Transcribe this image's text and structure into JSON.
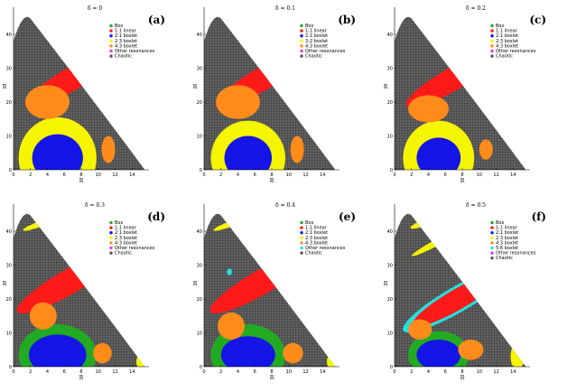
{
  "chart_data": [
    {
      "type": "scatter",
      "panel": "(a)",
      "title": "δ = 0",
      "xlabel": "R",
      "ylabel": "R",
      "xlim": [
        0,
        16
      ],
      "ylim": [
        0,
        48
      ],
      "xticks": [
        "0",
        "2",
        "4",
        "6",
        "8",
        "10",
        "12",
        "14"
      ],
      "yticks": [
        "0",
        "10",
        "20",
        "30",
        "40"
      ],
      "legend": [
        {
          "label": "Box",
          "color": "#22aa22"
        },
        {
          "label": "1:1 linear",
          "color": "#ff1a1a"
        },
        {
          "label": "2:1 boxlet",
          "color": "#1414e6"
        },
        {
          "label": "2:3 boxlet",
          "color": "#f5f500"
        },
        {
          "label": "4:3 boxlet",
          "color": "#ff8c1a"
        },
        {
          "label": "Other resonances",
          "color": "#e040e0"
        },
        {
          "label": "Chaotic",
          "color": "#555555"
        }
      ],
      "regions": [
        {
          "orbit": "Box",
          "color": "#22aa22",
          "cx": 5.2,
          "cy": 3.5,
          "rx": 3.8,
          "ry": 9,
          "kind": "ellipse"
        },
        {
          "orbit": "2:3 boxlet",
          "color": "#f5f500",
          "cx": 5.2,
          "cy": 3.5,
          "rx": 4.6,
          "ry": 12,
          "kind": "ellipse"
        },
        {
          "orbit": "2:1 boxlet",
          "color": "#1414e6",
          "cx": 5.2,
          "cy": 3.5,
          "rx": 3.0,
          "ry": 7,
          "kind": "ellipse"
        },
        {
          "orbit": "1:1 linear",
          "color": "#ff1a1a",
          "cx": 7.0,
          "cy": 27,
          "rx": 6.5,
          "ry": 3.4,
          "rot": 30,
          "kind": "ellipse"
        },
        {
          "orbit": "4:3 boxlet",
          "color": "#ff8c1a",
          "cx": 4.0,
          "cy": 20,
          "rx": 2.6,
          "ry": 5,
          "kind": "ellipse"
        },
        {
          "orbit": "4:3 boxlet",
          "color": "#ff8c1a",
          "cx": 11.2,
          "cy": 6,
          "rx": 0.8,
          "ry": 4,
          "kind": "ellipse"
        }
      ]
    },
    {
      "type": "scatter",
      "panel": "(b)",
      "title": "δ = 0.1",
      "xlabel": "R",
      "ylabel": "R",
      "xlim": [
        0,
        16
      ],
      "ylim": [
        0,
        48
      ],
      "xticks": [
        "0",
        "2",
        "4",
        "6",
        "8",
        "10",
        "12",
        "14"
      ],
      "yticks": [
        "0",
        "10",
        "20",
        "30",
        "40"
      ],
      "legend": [
        {
          "label": "Box",
          "color": "#22aa22"
        },
        {
          "label": "1:1 linear",
          "color": "#ff1a1a"
        },
        {
          "label": "2:1 boxlet",
          "color": "#1414e6"
        },
        {
          "label": "3:2 boxlet",
          "color": "#f5f500"
        },
        {
          "label": "4:3 boxlet",
          "color": "#ff8c1a"
        },
        {
          "label": "Other resonances",
          "color": "#e040e0"
        },
        {
          "label": "Chaotic",
          "color": "#555555"
        }
      ],
      "regions": [
        {
          "orbit": "Box",
          "color": "#22aa22",
          "cx": 5.2,
          "cy": 3.5,
          "rx": 3.6,
          "ry": 9,
          "kind": "ellipse"
        },
        {
          "orbit": "3:2 boxlet",
          "color": "#f5f500",
          "cx": 5.2,
          "cy": 3.5,
          "rx": 4.4,
          "ry": 11,
          "kind": "ellipse"
        },
        {
          "orbit": "2:1 boxlet",
          "color": "#1414e6",
          "cx": 5.2,
          "cy": 3.5,
          "rx": 2.8,
          "ry": 6.5,
          "kind": "ellipse"
        },
        {
          "orbit": "1:1 linear",
          "color": "#ff1a1a",
          "cx": 7.0,
          "cy": 27,
          "rx": 6.5,
          "ry": 3.4,
          "rot": 30,
          "kind": "ellipse"
        },
        {
          "orbit": "4:3 boxlet",
          "color": "#ff8c1a",
          "cx": 4.0,
          "cy": 20,
          "rx": 2.6,
          "ry": 5,
          "kind": "ellipse"
        },
        {
          "orbit": "4:3 boxlet",
          "color": "#ff8c1a",
          "cx": 11.0,
          "cy": 6,
          "rx": 0.8,
          "ry": 4,
          "kind": "ellipse"
        }
      ]
    },
    {
      "type": "scatter",
      "panel": "(c)",
      "title": "δ = 0.2",
      "xlabel": "R",
      "ylabel": "R",
      "xlim": [
        0,
        16
      ],
      "ylim": [
        0,
        48
      ],
      "xticks": [
        "0",
        "2",
        "4",
        "6",
        "8",
        "10",
        "12",
        "14"
      ],
      "yticks": [
        "0",
        "10",
        "20",
        "30",
        "40"
      ],
      "legend": [
        {
          "label": "Box",
          "color": "#22aa22"
        },
        {
          "label": "1:1 linear",
          "color": "#ff1a1a"
        },
        {
          "label": "2:1 boxlet",
          "color": "#1414e6"
        },
        {
          "label": "2:3 boxlet",
          "color": "#f5f500"
        },
        {
          "label": "4:3 boxlet",
          "color": "#ff8c1a"
        },
        {
          "label": "Other resonances",
          "color": "#e040e0"
        },
        {
          "label": "Chaotic",
          "color": "#555555"
        }
      ],
      "regions": [
        {
          "orbit": "Box",
          "color": "#22aa22",
          "cx": 5.2,
          "cy": 3.5,
          "rx": 3.4,
          "ry": 9,
          "kind": "ellipse"
        },
        {
          "orbit": "2:3 boxlet",
          "color": "#f5f500",
          "cx": 5.2,
          "cy": 3.5,
          "rx": 4.2,
          "ry": 11,
          "kind": "ellipse"
        },
        {
          "orbit": "2:1 boxlet",
          "color": "#1414e6",
          "cx": 5.2,
          "cy": 3.5,
          "rx": 2.6,
          "ry": 6,
          "kind": "ellipse"
        },
        {
          "orbit": "1:1 linear",
          "color": "#ff1a1a",
          "cx": 7.0,
          "cy": 27,
          "rx": 6.5,
          "ry": 3.4,
          "rot": 30,
          "kind": "ellipse"
        },
        {
          "orbit": "4:3 boxlet",
          "color": "#ff8c1a",
          "cx": 4.0,
          "cy": 18,
          "rx": 2.4,
          "ry": 4,
          "kind": "ellipse"
        },
        {
          "orbit": "4:3 boxlet",
          "color": "#ff8c1a",
          "cx": 10.8,
          "cy": 6,
          "rx": 0.8,
          "ry": 3,
          "kind": "ellipse"
        }
      ]
    },
    {
      "type": "scatter",
      "panel": "(d)",
      "title": "δ = 0.3",
      "xlabel": "R",
      "ylabel": "R",
      "xlim": [
        0,
        16
      ],
      "ylim": [
        0,
        48
      ],
      "xticks": [
        "0",
        "2",
        "4",
        "6",
        "8",
        "10",
        "12",
        "14"
      ],
      "yticks": [
        "0",
        "10",
        "20",
        "30",
        "40"
      ],
      "legend": [
        {
          "label": "Box",
          "color": "#22aa22"
        },
        {
          "label": "1:1 linear",
          "color": "#ff1a1a"
        },
        {
          "label": "2:1 boxlet",
          "color": "#1414e6"
        },
        {
          "label": "2:3 boxlet",
          "color": "#f5f500"
        },
        {
          "label": "4:3 boxlet",
          "color": "#ff8c1a"
        },
        {
          "label": "Other resonances",
          "color": "#e040e0"
        },
        {
          "label": "Chaotic",
          "color": "#555555"
        }
      ],
      "regions": [
        {
          "orbit": "Box",
          "color": "#22aa22",
          "cx": 5.2,
          "cy": 3.5,
          "rx": 4.6,
          "ry": 9,
          "kind": "ellipse"
        },
        {
          "orbit": "2:1 boxlet",
          "color": "#1414e6",
          "cx": 5.2,
          "cy": 3.5,
          "rx": 3.4,
          "ry": 6,
          "kind": "ellipse"
        },
        {
          "orbit": "1:1 linear",
          "color": "#ff1a1a",
          "cx": 6.5,
          "cy": 25,
          "rx": 7,
          "ry": 3.6,
          "rot": 30,
          "kind": "ellipse"
        },
        {
          "orbit": "4:3 boxlet",
          "color": "#ff8c1a",
          "cx": 3.5,
          "cy": 15,
          "rx": 1.6,
          "ry": 4,
          "kind": "ellipse"
        },
        {
          "orbit": "4:3 boxlet",
          "color": "#ff8c1a",
          "cx": 10.5,
          "cy": 4,
          "rx": 1.1,
          "ry": 3,
          "kind": "ellipse"
        },
        {
          "orbit": "2:3 boxlet",
          "color": "#f5f500",
          "cx": 3.0,
          "cy": 42,
          "rx": 2.0,
          "ry": 0.8,
          "rot": 20,
          "kind": "ellipse"
        },
        {
          "orbit": "2:3 boxlet",
          "color": "#f5f500",
          "cx": 15.0,
          "cy": 1.5,
          "rx": 0.5,
          "ry": 2,
          "kind": "ellipse"
        }
      ]
    },
    {
      "type": "scatter",
      "panel": "(e)",
      "title": "δ = 0.4",
      "xlabel": "R",
      "ylabel": "R",
      "xlim": [
        0,
        16
      ],
      "ylim": [
        0,
        48
      ],
      "xticks": [
        "0",
        "2",
        "4",
        "6",
        "8",
        "10",
        "12",
        "14"
      ],
      "yticks": [
        "0",
        "10",
        "20",
        "30",
        "40"
      ],
      "legend": [
        {
          "label": "Box",
          "color": "#22aa22"
        },
        {
          "label": "1:1 linear",
          "color": "#ff1a1a"
        },
        {
          "label": "2:1 boxlet",
          "color": "#1414e6"
        },
        {
          "label": "2:3 boxlet",
          "color": "#f5f500"
        },
        {
          "label": "4:3 boxlet",
          "color": "#ff8c1a"
        },
        {
          "label": "Other resonances",
          "color": "#22e0e0"
        },
        {
          "label": "Chaotic",
          "color": "#555555"
        }
      ],
      "regions": [
        {
          "orbit": "Box",
          "color": "#22aa22",
          "cx": 5.2,
          "cy": 3.5,
          "rx": 4.4,
          "ry": 9,
          "kind": "ellipse"
        },
        {
          "orbit": "2:1 boxlet",
          "color": "#1414e6",
          "cx": 5.2,
          "cy": 3.5,
          "rx": 3.2,
          "ry": 5.5,
          "kind": "ellipse"
        },
        {
          "orbit": "1:1 linear",
          "color": "#ff1a1a",
          "cx": 6.8,
          "cy": 25,
          "rx": 7,
          "ry": 3.6,
          "rot": 30,
          "kind": "ellipse"
        },
        {
          "orbit": "4:3 boxlet",
          "color": "#ff8c1a",
          "cx": 3.2,
          "cy": 12,
          "rx": 1.6,
          "ry": 4,
          "kind": "ellipse"
        },
        {
          "orbit": "4:3 boxlet",
          "color": "#ff8c1a",
          "cx": 10.5,
          "cy": 4,
          "rx": 1.2,
          "ry": 3,
          "kind": "ellipse"
        },
        {
          "orbit": "Other resonances",
          "color": "#22e0e0",
          "cx": 3.0,
          "cy": 28,
          "rx": 0.3,
          "ry": 1,
          "kind": "ellipse"
        },
        {
          "orbit": "2:3 boxlet",
          "color": "#f5f500",
          "cx": 3.0,
          "cy": 42,
          "rx": 2.0,
          "ry": 0.8,
          "rot": 20,
          "kind": "ellipse"
        },
        {
          "orbit": "2:3 boxlet",
          "color": "#f5f500",
          "cx": 15.0,
          "cy": 1.5,
          "rx": 0.5,
          "ry": 2,
          "kind": "ellipse"
        }
      ]
    },
    {
      "type": "scatter",
      "panel": "(f)",
      "title": "δ = 0.5",
      "xlabel": "R",
      "ylabel": "R",
      "xlim": [
        0,
        16
      ],
      "ylim": [
        0,
        48
      ],
      "xticks": [
        "0",
        "2",
        "4",
        "6",
        "8",
        "10",
        "12",
        "14"
      ],
      "yticks": [
        "0",
        "10",
        "20",
        "30",
        "40"
      ],
      "legend": [
        {
          "label": "Box",
          "color": "#22aa22"
        },
        {
          "label": "1:1 linear",
          "color": "#ff1a1a"
        },
        {
          "label": "2:1 boxlet",
          "color": "#1414e6"
        },
        {
          "label": "2:3 boxlet",
          "color": "#f5f500"
        },
        {
          "label": "4:3 boxlet",
          "color": "#ff8c1a"
        },
        {
          "label": "5:6 boxlet",
          "color": "#22e0e0"
        },
        {
          "label": "Other resonances",
          "color": "#e040e0"
        },
        {
          "label": "Chaotic",
          "color": "#555555"
        }
      ],
      "regions": [
        {
          "orbit": "Box",
          "color": "#22aa22",
          "cx": 5.2,
          "cy": 3.5,
          "rx": 3.6,
          "ry": 7,
          "kind": "ellipse"
        },
        {
          "orbit": "2:1 boxlet",
          "color": "#1414e6",
          "cx": 5.2,
          "cy": 3.5,
          "rx": 2.6,
          "ry": 4.5,
          "kind": "ellipse"
        },
        {
          "orbit": "5:6 boxlet",
          "color": "#22e0e0",
          "cx": 7.5,
          "cy": 20,
          "rx": 7.5,
          "ry": 3.8,
          "rot": 30,
          "kind": "ellipse"
        },
        {
          "orbit": "1:1 linear",
          "color": "#ff1a1a",
          "cx": 7.5,
          "cy": 20,
          "rx": 6.2,
          "ry": 3.0,
          "rot": 30,
          "kind": "ellipse"
        },
        {
          "orbit": "4:3 boxlet",
          "color": "#ff8c1a",
          "cx": 3.0,
          "cy": 11,
          "rx": 1.4,
          "ry": 3,
          "kind": "ellipse"
        },
        {
          "orbit": "4:3 boxlet",
          "color": "#ff8c1a",
          "cx": 9.0,
          "cy": 5,
          "rx": 1.5,
          "ry": 3,
          "kind": "ellipse"
        },
        {
          "orbit": "2:3 boxlet",
          "color": "#f5f500",
          "cx": 6.0,
          "cy": 38,
          "rx": 4.5,
          "ry": 1.0,
          "rot": 28,
          "kind": "ellipse"
        },
        {
          "orbit": "2:3 boxlet",
          "color": "#f5f500",
          "cx": 14.5,
          "cy": 3,
          "rx": 0.8,
          "ry": 4,
          "kind": "ellipse"
        },
        {
          "orbit": "2:3 boxlet",
          "color": "#f5f500",
          "cx": 3.0,
          "cy": 42,
          "rx": 1.2,
          "ry": 0.8,
          "rot": 20,
          "kind": "ellipse"
        }
      ]
    }
  ]
}
